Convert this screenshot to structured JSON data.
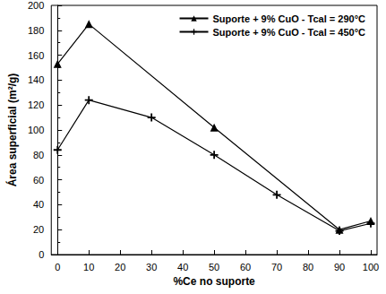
{
  "chart_data": {
    "type": "line",
    "x_label": "%Ce no suporte",
    "y_label": "Área superficial (m²/g)",
    "xlim": [
      -2,
      102
    ],
    "xticks": [
      0,
      10,
      20,
      30,
      40,
      50,
      60,
      70,
      80,
      90,
      100
    ],
    "ylim": [
      0,
      200
    ],
    "yticks": [
      0,
      20,
      40,
      60,
      80,
      100,
      120,
      140,
      160,
      180,
      200
    ],
    "grid": false,
    "legend": "upper right",
    "series": [
      {
        "name": "Suporte + 9% CuO - Tcal = 290°C",
        "color": "#000000",
        "marker": "triangle",
        "x": [
          0,
          10,
          50,
          90,
          100
        ],
        "values": [
          153,
          185,
          102,
          20,
          27
        ]
      },
      {
        "name": "Suporte + 9% CuO - Tcal = 450°C",
        "color": "#000000",
        "marker": "cross",
        "x": [
          0,
          10,
          30,
          50,
          70,
          90,
          100
        ],
        "values": [
          84,
          124,
          110,
          80,
          48,
          19,
          25
        ]
      }
    ]
  }
}
